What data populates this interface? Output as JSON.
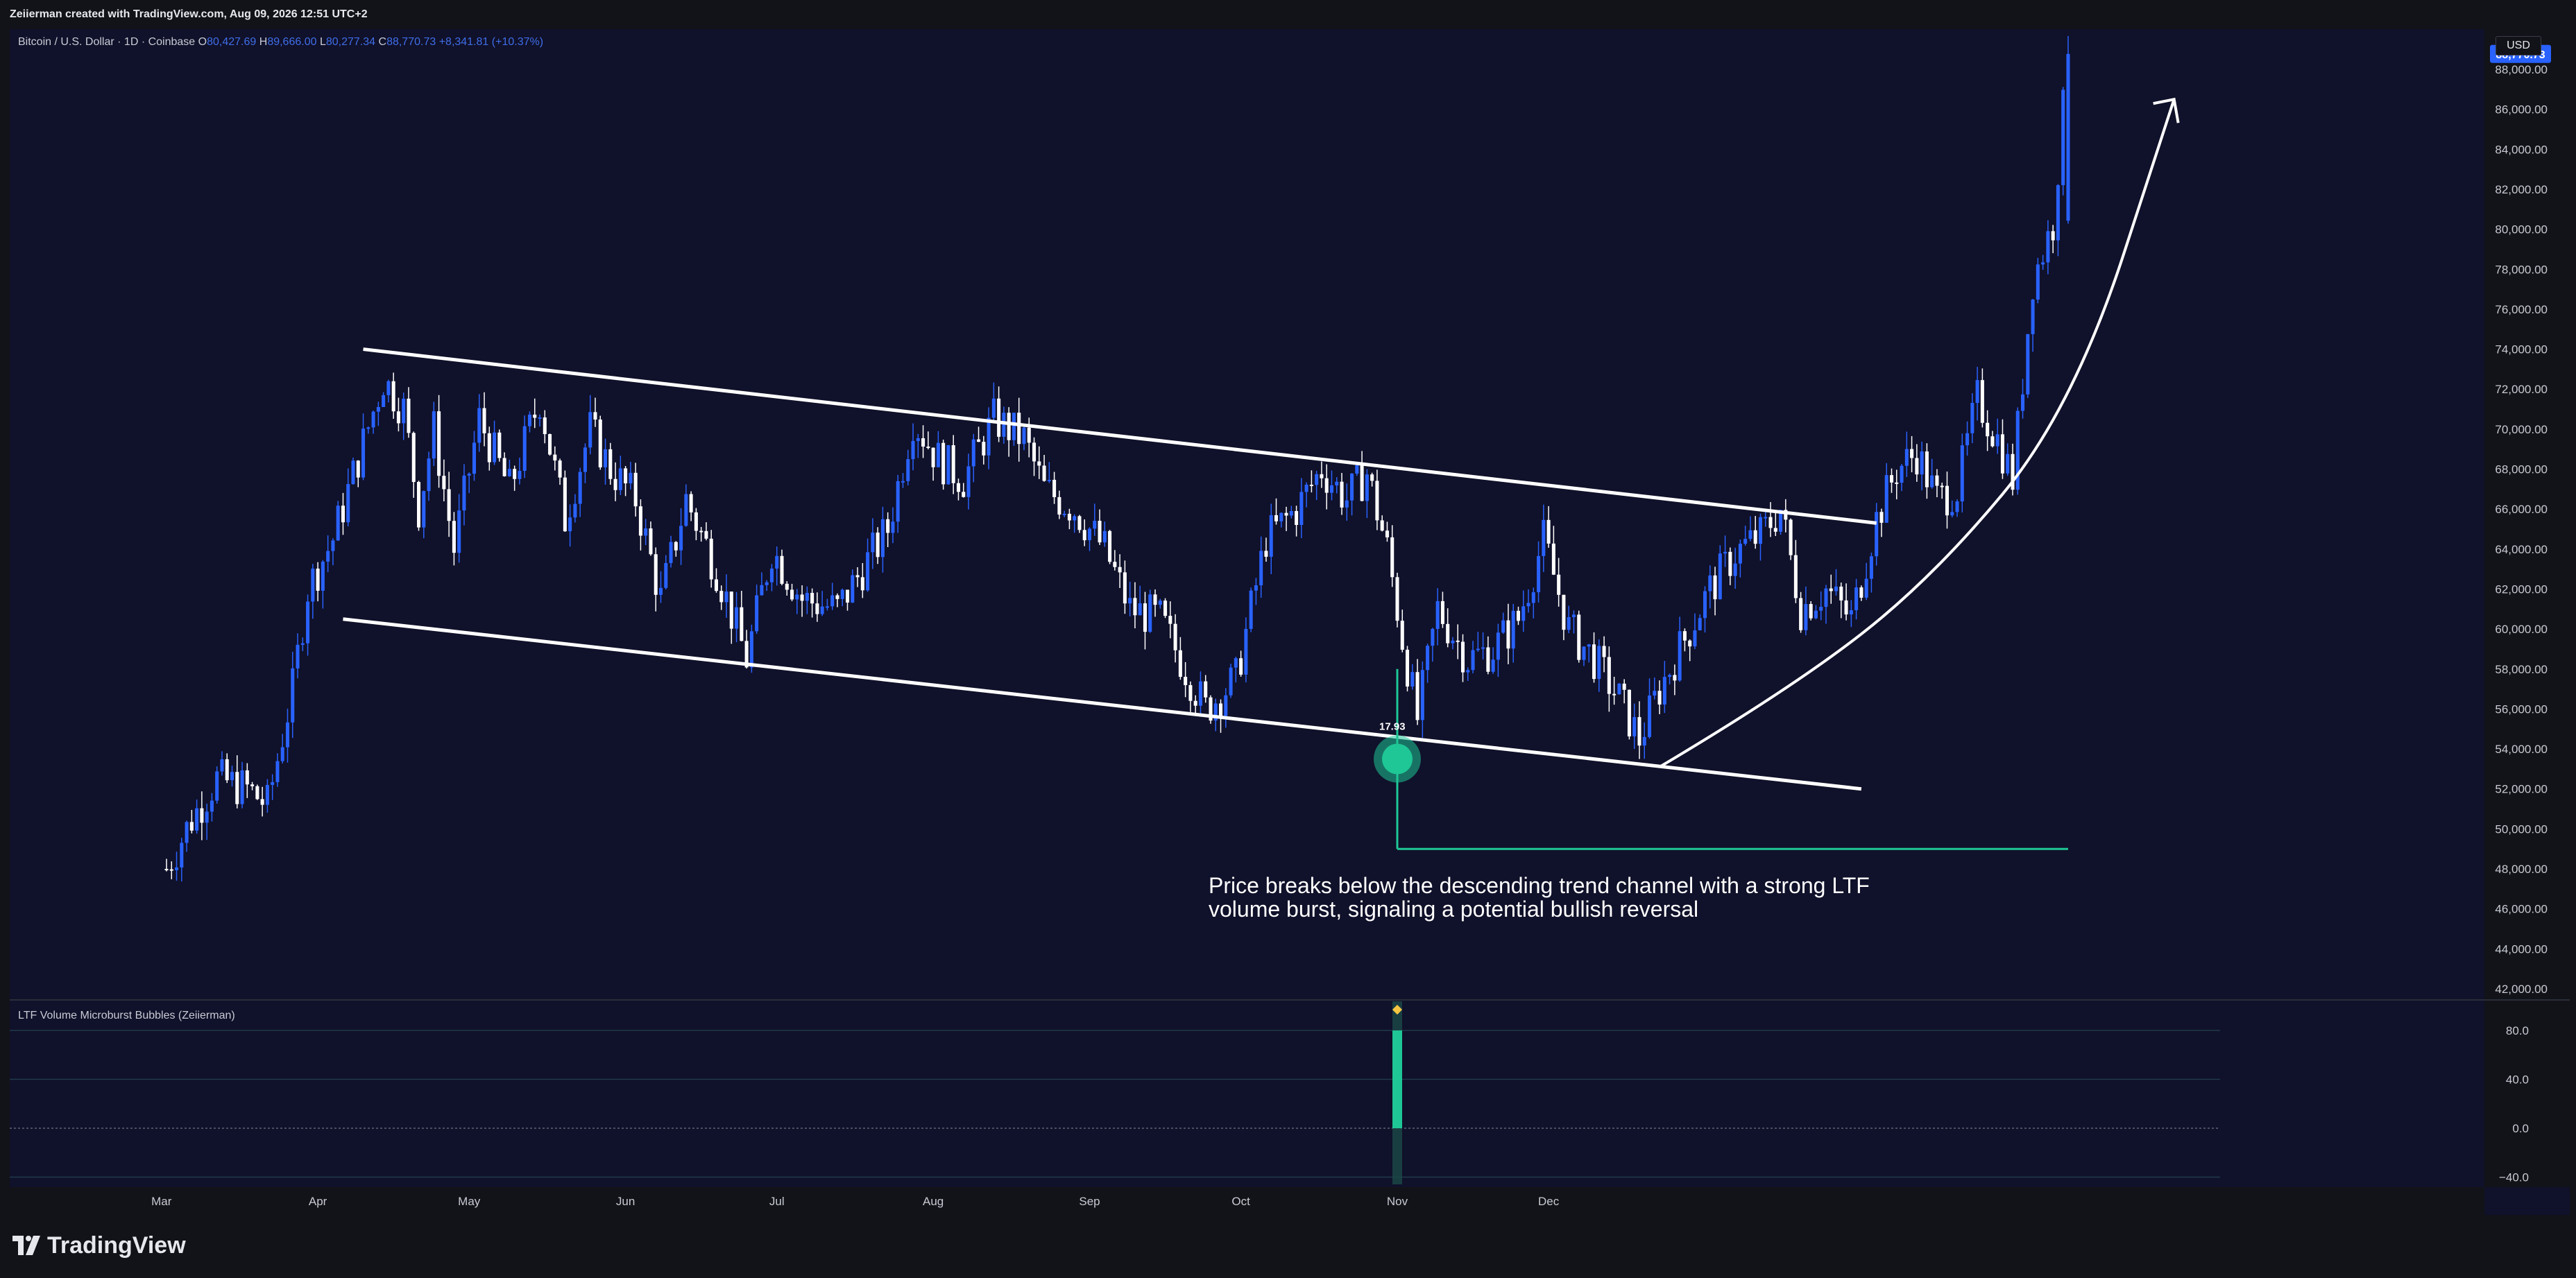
{
  "header": {
    "attribution": "Zeiierman created with TradingView.com, Aug 09, 2026 12:51 UTC+2"
  },
  "legend": {
    "symbol": "Bitcoin / U.S. Dollar · 1D · Coinbase",
    "open_label": "O",
    "open": "80,427.69",
    "high_label": "H",
    "high": "89,666.00",
    "low_label": "L",
    "low": "80,277.34",
    "close_label": "C",
    "close": "88,770.73",
    "change": "+8,341.81 (+10.37%)"
  },
  "axis": {
    "currency": "USD",
    "last_price": "88,770.73"
  },
  "annotation": {
    "text": "Price breaks below the descending trend channel with a strong LTF volume burst, signaling a potential bullish reversal",
    "bubble_label": "17.93"
  },
  "indicator": {
    "title": "LTF Volume Microburst Bubbles (Zeiierman)"
  },
  "brand": {
    "name": "TradingView"
  },
  "colors": {
    "background": "#10112a",
    "bull_candle": "#2962ff",
    "bear_candle": "#ffffff",
    "bubble": "#1ec795",
    "accent_text": "#3f6ee8"
  },
  "chart_data": [
    {
      "type": "candlestick",
      "title": "Bitcoin / U.S. Dollar · 1D · Coinbase",
      "x_ticks": [
        "Mar",
        "Apr",
        "May",
        "Jun",
        "Jul",
        "Aug",
        "Sep",
        "Oct",
        "Nov",
        "Dec"
      ],
      "y_ticks": [
        42000,
        44000,
        46000,
        48000,
        50000,
        52000,
        54000,
        56000,
        58000,
        60000,
        62000,
        64000,
        66000,
        68000,
        70000,
        72000,
        74000,
        76000,
        78000,
        80000,
        82000,
        84000,
        86000,
        88000
      ],
      "y_tick_labels": [
        "42,000.00",
        "44,000.00",
        "46,000.00",
        "48,000.00",
        "50,000.00",
        "52,000.00",
        "54,000.00",
        "56,000.00",
        "58,000.00",
        "60,000.00",
        "62,000.00",
        "64,000.00",
        "66,000.00",
        "68,000.00",
        "70,000.00",
        "72,000.00",
        "74,000.00",
        "76,000.00",
        "78,000.00",
        "80,000.00",
        "82,000.00",
        "84,000.00",
        "86,000.00",
        "88,000.00"
      ],
      "ylim": [
        41300,
        91000
      ],
      "days_range": [
        -55,
        340
      ],
      "close_path": [
        [
          0,
          48000
        ],
        [
          5,
          50500
        ],
        [
          10,
          52500
        ],
        [
          16,
          52000
        ],
        [
          20,
          51200
        ],
        [
          22,
          53500
        ],
        [
          25,
          57000
        ],
        [
          28,
          62000
        ],
        [
          33,
          64500
        ],
        [
          38,
          68500
        ],
        [
          43,
          72500
        ],
        [
          47,
          71000
        ],
        [
          50,
          66000
        ],
        [
          53,
          70000
        ],
        [
          57,
          64000
        ],
        [
          62,
          70500
        ],
        [
          68,
          67000
        ],
        [
          74,
          71500
        ],
        [
          79,
          65500
        ],
        [
          84,
          70000
        ],
        [
          88,
          68000
        ],
        [
          93,
          66500
        ],
        [
          98,
          61500
        ],
        [
          103,
          66500
        ],
        [
          109,
          63000
        ],
        [
          115,
          58500
        ],
        [
          120,
          64000
        ],
        [
          126,
          61500
        ],
        [
          133,
          61000
        ],
        [
          138,
          63000
        ],
        [
          143,
          65000
        ],
        [
          148,
          70500
        ],
        [
          153,
          68500
        ],
        [
          158,
          67500
        ],
        [
          164,
          70500
        ],
        [
          170,
          69500
        ],
        [
          174,
          67000
        ],
        [
          180,
          66000
        ],
        [
          186,
          64000
        ],
        [
          191,
          61000
        ],
        [
          197,
          60500
        ],
        [
          202,
          58000
        ],
        [
          206,
          56000
        ],
        [
          212,
          57500
        ],
        [
          218,
          64500
        ],
        [
          224,
          66000
        ],
        [
          229,
          68000
        ],
        [
          234,
          66500
        ],
        [
          238,
          67800
        ],
        [
          242,
          64000
        ],
        [
          245,
          59500
        ],
        [
          248,
          55500
        ],
        [
          252,
          61000
        ],
        [
          258,
          58500
        ],
        [
          263,
          59000
        ],
        [
          268,
          60500
        ],
        [
          273,
          64500
        ],
        [
          278,
          60000
        ],
        [
          283,
          58500
        ],
        [
          288,
          56500
        ],
        [
          292,
          54500
        ],
        [
          296,
          57000
        ],
        [
          301,
          59500
        ],
        [
          306,
          62000
        ],
        [
          311,
          63800
        ],
        [
          316,
          64700
        ],
        [
          320,
          66000
        ],
        [
          324,
          61000
        ],
        [
          329,
          62000
        ],
        [
          334,
          60500
        ],
        [
          339,
          65500
        ],
        [
          343,
          68000
        ],
        [
          347,
          68800
        ],
        [
          351,
          66500
        ],
        [
          355,
          67000
        ],
        [
          359,
          71500
        ],
        [
          363,
          69500
        ],
        [
          366,
          67500
        ],
        [
          370,
          77500
        ],
        [
          374,
          80300
        ],
        [
          377,
          88770
        ]
      ],
      "channel": {
        "upper": [
          [
            39,
            74000
          ],
          [
            339,
            65300
          ]
        ],
        "lower": [
          [
            35,
            60500
          ],
          [
            336,
            52000
          ]
        ]
      },
      "bubble": {
        "day": 244,
        "price": 53500,
        "label": "17.93"
      },
      "breakout_arrow": [
        [
          296,
          53100
        ],
        [
          322,
          57000
        ],
        [
          350,
          62500
        ],
        [
          378,
          71000
        ],
        [
          398,
          86500
        ]
      ],
      "last_price": 88770.73
    },
    {
      "type": "bar",
      "title": "LTF Volume Microburst Bubbles (Zeiierman)",
      "y_ticks": [
        -40,
        0,
        40,
        80
      ],
      "y_tick_labels": [
        "−40.0",
        "0.0",
        "40.0",
        "80.0"
      ],
      "ylim": [
        -46,
        100
      ],
      "values": [
        {
          "day": 244,
          "value": 80
        }
      ],
      "marker": {
        "day": 244,
        "value": 97
      }
    }
  ]
}
